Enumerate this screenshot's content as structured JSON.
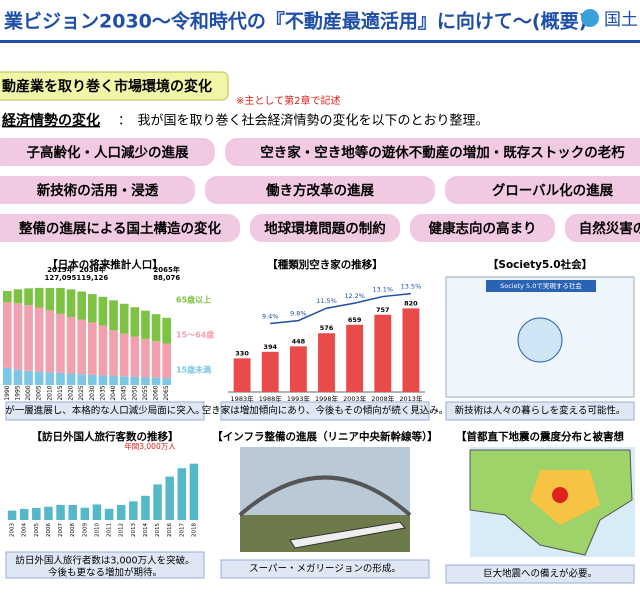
{
  "header": {
    "title": "業ビジョン2030～令和時代の『不動産最適活用』に向けて～(概要)",
    "logo": "国土"
  },
  "section": {
    "title": "動産業を取り巻く市場環境の変化",
    "note": "※主として第2章で記述",
    "lead_label": "経済情勢の変化",
    "lead_text": "：　我が国を取り巻く社会経済情勢の変化を以下のとおり整理。"
  },
  "trends": [
    [
      "子高齢化・人口減少の進展",
      "空き家・空き地等の遊休不動産の増加・既存ストックの老朽"
    ],
    [
      "新技術の活用・浸透",
      "働き方改革の進展",
      "グローバル化の進展"
    ],
    [
      "整備の進展による国土構造の変化",
      "地球環境問題の制約",
      "健康志向の高まり",
      "自然災害の"
    ]
  ],
  "panels": [
    {
      "title": "【日本の将来推計人口】",
      "caption": "が一層進展し、本格的な人口減少局面に突入。",
      "chart_data": {
        "type": "stacked_bar",
        "categories": [
          "1990",
          "1995",
          "2000",
          "2005",
          "2010",
          "2015",
          "2020",
          "2025",
          "2030",
          "2035",
          "2040",
          "2045",
          "2050",
          "2055",
          "2060",
          "2065"
        ],
        "series": [
          {
            "name": "15歳未満",
            "color": "#7cc6e6",
            "values": [
              22486,
              20014,
              18472,
              17521,
              16803,
              15945,
              15075,
              14073,
              13212,
              12457,
              11936,
              11384,
              10767,
              10123,
              9508,
              8975
            ]
          },
          {
            "name": "15～64歳",
            "color": "#f3a0ae",
            "values": [
              85904,
              87165,
              86220,
              84092,
              81032,
              77282,
              74058,
              71701,
              68754,
              65295,
              59777,
              55845,
              52750,
              50276,
              47928,
              45291
            ]
          },
          {
            "name": "65歳以上",
            "color": "#7cc243",
            "values": [
              14895,
              18261,
              22005,
              25672,
              29246,
              33868,
              36192,
              36771,
              37160,
              37817,
              39206,
              39192,
              38406,
              37042,
              35403,
              33810
            ]
          }
        ],
        "ylim": [
          0,
          135000
        ],
        "annotations": [
          {
            "index": 5,
            "year": "2015年",
            "label": "127,095"
          },
          {
            "index": 8,
            "year": "2030年",
            "label": "119,126"
          },
          {
            "index": 15,
            "year": "2065年",
            "label": "88,076"
          }
        ]
      }
    },
    {
      "title": "【種類別空き家の推移】",
      "caption": "空き家は増加傾向にあり、今後もその傾向が続く見込み。",
      "chart_data": {
        "type": "bar_line",
        "categories": [
          "1983年",
          "1988年",
          "1993年",
          "1998年",
          "2003年",
          "2008年",
          "2013年"
        ],
        "values": [
          330,
          394,
          448,
          576,
          659,
          757,
          820
        ],
        "color": "#e94b4b",
        "rates": [
          null,
          9.4,
          9.8,
          11.5,
          12.2,
          13.1,
          13.5
        ],
        "rate_labels": [
          null,
          "9.4%",
          "9.8%",
          "11.5%",
          "12.2%",
          "13.1%",
          "13.5%"
        ],
        "ylim": [
          0,
          1000
        ],
        "y2lim": [
          0,
          14
        ]
      }
    },
    {
      "title": "【Society5.0社会】",
      "caption": "新技術は人々の暮らしを変える可能性。",
      "inner": "Society 5.0で実現する社会"
    },
    {
      "title": "【訪日外国人旅行客数の推移】",
      "caption": "訪日外国人旅行者数は3,000万人を突破。",
      "caption2": "今後も更なる増加が期待。",
      "chart_data": {
        "type": "bar",
        "categories": [
          "2003",
          "2004",
          "2005",
          "2006",
          "2007",
          "2008",
          "2009",
          "2010",
          "2011",
          "2012",
          "2013",
          "2014",
          "2015",
          "2016",
          "2017",
          "2018"
        ],
        "values": [
          521,
          614,
          673,
          733,
          835,
          835,
          679,
          861,
          622,
          836,
          1036,
          1341,
          1974,
          2404,
          2869,
          3119
        ],
        "color": "#55b8c8",
        "ylim": [
          0,
          3600
        ],
        "annotation": "年間3,000万人"
      }
    },
    {
      "title": "【インフラ整備の進展（リニア中央新幹線等）】",
      "caption": "スーパー・メガリージョンの形成。"
    },
    {
      "title": "【首都直下地震の震度分布と被害想",
      "caption": "巨大地震への備えが必要。"
    }
  ]
}
